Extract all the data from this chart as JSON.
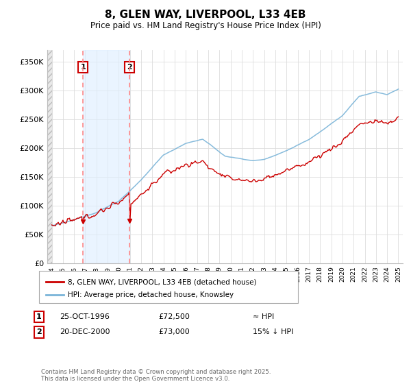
{
  "title": "8, GLEN WAY, LIVERPOOL, L33 4EB",
  "subtitle": "Price paid vs. HM Land Registry's House Price Index (HPI)",
  "ylim": [
    0,
    370000
  ],
  "yticks": [
    0,
    50000,
    100000,
    150000,
    200000,
    250000,
    300000,
    350000
  ],
  "ytick_labels": [
    "£0",
    "£50K",
    "£100K",
    "£150K",
    "£200K",
    "£250K",
    "£300K",
    "£350K"
  ],
  "hpi_color": "#7ab4d8",
  "price_color": "#cc0000",
  "vline_color": "#ff8888",
  "sale1_year": 1996.79,
  "sale2_year": 2000.96,
  "sale1_price": 72500,
  "sale2_price": 73000,
  "sale1_date_str": "25-OCT-1996",
  "sale2_date_str": "20-DEC-2000",
  "sale1_hpi_str": "≈ HPI",
  "sale2_hpi_str": "15% ↓ HPI",
  "legend_line1": "8, GLEN WAY, LIVERPOOL, L33 4EB (detached house)",
  "legend_line2": "HPI: Average price, detached house, Knowsley",
  "footer": "Contains HM Land Registry data © Crown copyright and database right 2025.\nThis data is licensed under the Open Government Licence v3.0.",
  "bg_color": "#ffffff",
  "plot_bg": "#ffffff",
  "grid_color": "#dddddd",
  "shade_color": "#ddeeff",
  "hatch_color": "#dddddd"
}
